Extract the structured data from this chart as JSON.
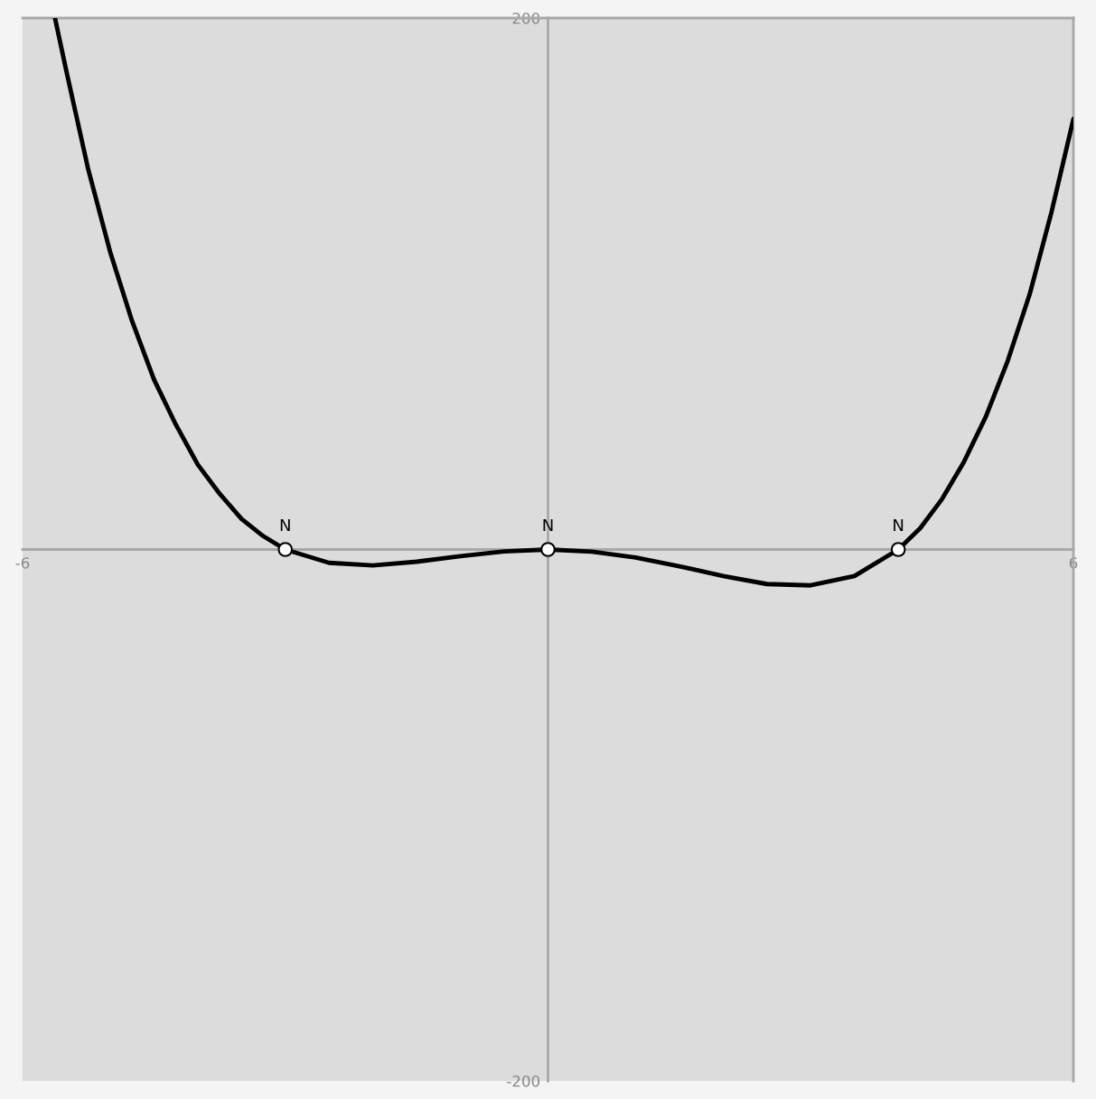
{
  "chart_data": {
    "type": "line",
    "xlim": [
      -6,
      6
    ],
    "ylim": [
      -200,
      200
    ],
    "xticks": [
      -6,
      6
    ],
    "yticks": [
      -200,
      200
    ],
    "grid": false,
    "series": [
      {
        "color": "#000000",
        "marker": "none",
        "line_style": "solid",
        "x": [
          -5.63,
          -5.5,
          -5.25,
          -5,
          -4.75,
          -4.5,
          -4.25,
          -4,
          -3.75,
          -3.5,
          -3.25,
          -3,
          -2.5,
          -2,
          -1.5,
          -1,
          -0.5,
          0,
          0.5,
          1,
          1.5,
          2,
          2.5,
          3,
          3.5,
          4,
          4.25,
          4.5,
          4.75,
          5,
          5.25,
          5.5,
          5.75,
          6
        ],
        "values": [
          200,
          180,
          143,
          112,
          86,
          64,
          47,
          32,
          21,
          11.5,
          5,
          0,
          -5,
          -6,
          -4.6,
          -2.5,
          -0.7,
          0,
          -0.8,
          -3,
          -6.3,
          -10,
          -13,
          -13.5,
          -10,
          0,
          8,
          19,
          33,
          50,
          71,
          96,
          127,
          162
        ]
      },
      {
        "type": "scatter",
        "color": "#ffffff",
        "marker": "circle",
        "x": [
          -3,
          0,
          4
        ],
        "values": [
          0,
          0,
          0
        ]
      }
    ],
    "annotations": [
      {
        "text": "N",
        "x": -3,
        "y": 0
      },
      {
        "text": "N",
        "x": 0,
        "y": 0
      },
      {
        "text": "N",
        "x": 4,
        "y": 0
      }
    ]
  }
}
